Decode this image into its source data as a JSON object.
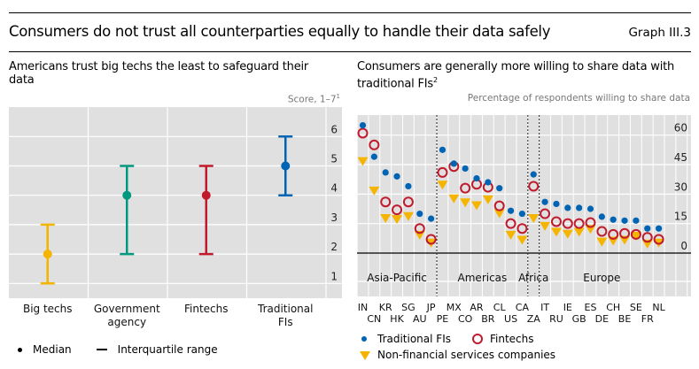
{
  "header": {
    "title": "Consumers do not trust all counterparties equally to handle their data safely",
    "graph_id": "Graph III.3"
  },
  "chart_data": [
    {
      "type": "errorbar",
      "title": "Americans trust big techs the least to safeguard their data",
      "title_line1": "Americans trust big techs the least to safeguard their",
      "title_line2": "data",
      "unit_label": "Score, 1–7",
      "unit_footnote": "1",
      "categories": [
        "Big techs",
        "Government agency",
        "Fintechs",
        "Traditional FIs"
      ],
      "category_lines": [
        [
          "Big techs"
        ],
        [
          "Government",
          "agency"
        ],
        [
          "Fintechs"
        ],
        [
          "Traditional",
          "FIs"
        ]
      ],
      "median": [
        2,
        4,
        4,
        5
      ],
      "iqr_low": [
        1,
        2,
        2,
        4
      ],
      "iqr_high": [
        3,
        5,
        5,
        6
      ],
      "colors": [
        "#f5b400",
        "#009980",
        "#c01a2c",
        "#0064b4"
      ],
      "ylim": [
        0,
        6.5
      ],
      "yticks": [
        "1",
        "2",
        "3",
        "4",
        "5",
        "6"
      ],
      "yaxis_side": "right",
      "grid": true,
      "legend": {
        "median_label": "Median",
        "iqr_label": "Interquartile range"
      }
    },
    {
      "type": "scatter",
      "title": "Consumers are generally more willing to share data with traditional FIs",
      "title_line1": "Consumers are generally more willing to share data with",
      "title_line2": "traditional FIs",
      "title_footnote": "2",
      "unit_label": "Percentage of respondents willing to share data",
      "categories": [
        "IN",
        "CN",
        "KR",
        "HK",
        "SG",
        "AU",
        "JP",
        "PE",
        "MX",
        "CO",
        "AR",
        "BR",
        "CL",
        "US",
        "CA",
        "ZA",
        "IT",
        "RU",
        "IE",
        "GB",
        "ES",
        "DE",
        "CH",
        "BE",
        "SE",
        "FR",
        "NL"
      ],
      "regions": [
        {
          "name": "Asia-Pacific",
          "start": 0,
          "end": 6
        },
        {
          "name": "Americas",
          "start": 7,
          "end": 14
        },
        {
          "name": "Africa",
          "start": 15,
          "end": 15
        },
        {
          "name": "Europe",
          "start": 16,
          "end": 26
        }
      ],
      "series": [
        {
          "name": "Traditional FIs",
          "marker": "filled-circle",
          "color": "#0064b4",
          "values": [
            65,
            49,
            41,
            39,
            34,
            20,
            17.5,
            52.5,
            45.5,
            43,
            38,
            36,
            33,
            21.5,
            20,
            40,
            26,
            25,
            23,
            23,
            22.5,
            18.5,
            17,
            16.5,
            16.5,
            12.5,
            12.5
          ]
        },
        {
          "name": "Fintechs",
          "marker": "open-circle",
          "color": "#c01a2c",
          "values": [
            61,
            55,
            26,
            22,
            26,
            12.5,
            7,
            41,
            44,
            33,
            35,
            33.5,
            24,
            15,
            12.5,
            34,
            20,
            16,
            15,
            15,
            15.5,
            11,
            9.5,
            10,
            9.5,
            8,
            7
          ]
        },
        {
          "name": "Non-financial services companies",
          "marker": "down-triangle",
          "color": "#f5b400",
          "values": [
            47,
            32,
            18,
            17.5,
            19,
            9.5,
            5.5,
            35,
            28,
            26,
            24.5,
            27.5,
            20.5,
            9.5,
            7,
            18,
            14,
            11,
            10,
            11,
            12.5,
            6,
            6.5,
            7,
            9,
            5,
            5.5
          ]
        }
      ],
      "ylim": [
        -22,
        67
      ],
      "yticks": [
        "0",
        "15",
        "30",
        "45",
        "60"
      ],
      "ytick_values": [
        0,
        15,
        30,
        45,
        60
      ],
      "yaxis_side": "right",
      "grid": true,
      "legend_placement": "bottom"
    }
  ]
}
